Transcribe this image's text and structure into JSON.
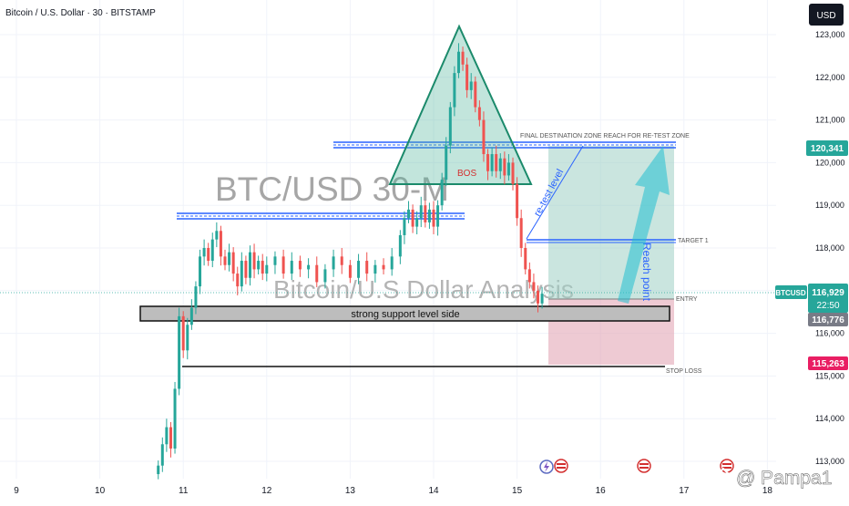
{
  "header": {
    "symbol_title": "Bitcoin / U.S. Dollar · 30 · BITSTAMP",
    "currency_button": "USD"
  },
  "watermark": {
    "big": "BTC/USD 30-M",
    "sub": "Bitcoin/U.S Dollar Analysis"
  },
  "annotations": {
    "bos": "BOS",
    "final_zone": "FINAL DESTINATION ZONE REACH FOR RE-TEST ZONE",
    "retest": "re-test level",
    "reach_point": "Reach point",
    "target1": "TARGET 1",
    "entry": "ENTRY",
    "stop_loss": "STOP LOSS",
    "support": "strong support level side"
  },
  "price_tags": {
    "zone_top": "120,341",
    "symbol": "BTCUSD",
    "current": "116,929",
    "countdown": "22:50",
    "entry": "116,776",
    "stop": "115,263"
  },
  "credit": "@ Pampa1",
  "colors": {
    "up": "#26a69a",
    "down": "#ef5350",
    "blue_line": "#2962ff",
    "triangle": "#1b8a6b",
    "target_zone": "#9fcfc4",
    "stop_zone": "#e2a6b5"
  },
  "chart_data": {
    "type": "candlestick",
    "symbol": "BTCUSD",
    "timeframe": "30",
    "exchange": "BITSTAMP",
    "y_ticks": [
      113000,
      114000,
      115000,
      116000,
      117000,
      118000,
      119000,
      120000,
      121000,
      122000,
      123000
    ],
    "x_ticks": [
      "9",
      "10",
      "11",
      "12",
      "13",
      "14",
      "15",
      "16",
      "17",
      "18"
    ],
    "ylim": [
      112800,
      123400
    ],
    "levels": {
      "left_resistance": 118700,
      "final_destination": 120400,
      "target_1": 118100,
      "entry": 116776,
      "stop_loss": 115263,
      "support_zone": [
        116200,
        116550
      ],
      "current": 116929
    },
    "series_close": [
      [
        10.7,
        112900
      ],
      [
        10.75,
        113400
      ],
      [
        10.8,
        113800
      ],
      [
        10.85,
        113300
      ],
      [
        10.9,
        114700
      ],
      [
        10.95,
        116400
      ],
      [
        11.0,
        115600
      ],
      [
        11.05,
        116200
      ],
      [
        11.1,
        116600
      ],
      [
        11.15,
        117100
      ],
      [
        11.2,
        117800
      ],
      [
        11.25,
        118000
      ],
      [
        11.3,
        117700
      ],
      [
        11.35,
        118200
      ],
      [
        11.4,
        118400
      ],
      [
        11.45,
        117800
      ],
      [
        11.5,
        117600
      ],
      [
        11.55,
        117900
      ],
      [
        11.6,
        117400
      ],
      [
        11.65,
        117100
      ],
      [
        11.7,
        117700
      ],
      [
        11.75,
        117300
      ],
      [
        11.8,
        117900
      ],
      [
        11.85,
        117500
      ],
      [
        11.9,
        117700
      ],
      [
        11.95,
        117400
      ],
      [
        12.0,
        117600
      ],
      [
        12.1,
        117800
      ],
      [
        12.2,
        117400
      ],
      [
        12.3,
        117700
      ],
      [
        12.4,
        117500
      ],
      [
        12.5,
        117600
      ],
      [
        12.6,
        117200
      ],
      [
        12.7,
        117500
      ],
      [
        12.8,
        117800
      ],
      [
        12.9,
        117600
      ],
      [
        13.0,
        117300
      ],
      [
        13.1,
        117700
      ],
      [
        13.2,
        117400
      ],
      [
        13.3,
        117600
      ],
      [
        13.4,
        117500
      ],
      [
        13.5,
        117800
      ],
      [
        13.6,
        118300
      ],
      [
        13.65,
        118700
      ],
      [
        13.7,
        118900
      ],
      [
        13.75,
        118500
      ],
      [
        13.8,
        118700
      ],
      [
        13.85,
        119000
      ],
      [
        13.9,
        118600
      ],
      [
        13.95,
        118900
      ],
      [
        14.0,
        118500
      ],
      [
        14.05,
        119000
      ],
      [
        14.1,
        119600
      ],
      [
        14.15,
        120400
      ],
      [
        14.2,
        121300
      ],
      [
        14.25,
        122100
      ],
      [
        14.3,
        122600
      ],
      [
        14.35,
        122300
      ],
      [
        14.4,
        121700
      ],
      [
        14.45,
        121900
      ],
      [
        14.5,
        121300
      ],
      [
        14.55,
        121000
      ],
      [
        14.6,
        120200
      ],
      [
        14.65,
        119800
      ],
      [
        14.7,
        120200
      ],
      [
        14.75,
        119800
      ],
      [
        14.8,
        120100
      ],
      [
        14.85,
        119700
      ],
      [
        14.9,
        120000
      ],
      [
        14.95,
        119500
      ],
      [
        15.0,
        118700
      ],
      [
        15.05,
        118000
      ],
      [
        15.1,
        117500
      ],
      [
        15.15,
        117200
      ],
      [
        15.2,
        117000
      ],
      [
        15.25,
        116700
      ],
      [
        15.3,
        116929
      ]
    ]
  }
}
